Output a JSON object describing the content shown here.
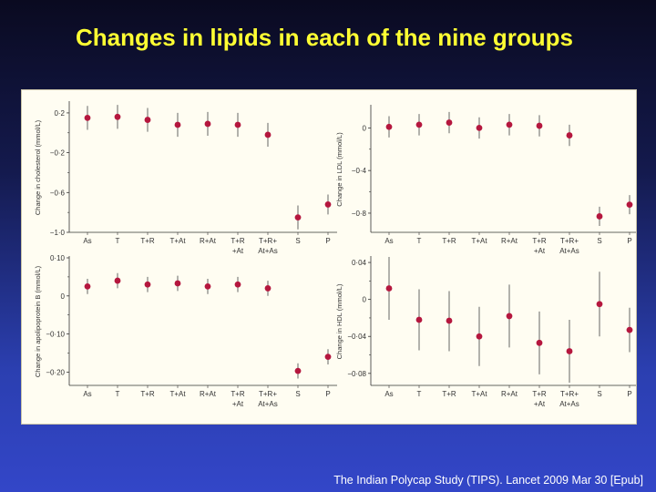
{
  "slide": {
    "title": "Changes in lipids in each of the nine groups",
    "citation": "The Indian Polycap Study (TIPS). Lancet 2009 Mar 30 [Epub]"
  },
  "colors": {
    "point": "#b5173e",
    "errorbar": "#555555",
    "axis": "#333333",
    "title": "#ffff33"
  },
  "chart_data": [
    {
      "type": "scatter",
      "ylabel": "Change in cholesterol (mmol/L)",
      "categories": [
        "As",
        "T",
        "T+R",
        "T+At",
        "R+At",
        "T+R\n+At",
        "T+R+\nAt+As",
        "S",
        "P"
      ],
      "values": [
        0.15,
        0.16,
        0.13,
        0.08,
        0.09,
        0.08,
        -0.02,
        -0.85,
        -0.72
      ],
      "error_low": [
        0.03,
        0.04,
        0.01,
        -0.04,
        -0.03,
        -0.04,
        -0.14,
        -0.97,
        -0.82
      ],
      "error_high": [
        0.27,
        0.28,
        0.25,
        0.2,
        0.21,
        0.2,
        0.1,
        -0.73,
        -0.62
      ],
      "ylim": [
        -1.0,
        0.3
      ],
      "yticks": [
        0.2,
        -0.2,
        -0.6,
        -1.0
      ],
      "ytick_labels": [
        "0·2",
        "−0·2",
        "−0·6",
        "−1·0"
      ]
    },
    {
      "type": "scatter",
      "ylabel": "Change in LDL (mmol/L)",
      "categories": [
        "As",
        "T",
        "T+R",
        "T+At",
        "R+At",
        "T+R\n+At",
        "T+R+\nAt+As",
        "S",
        "P"
      ],
      "values": [
        0.01,
        0.03,
        0.05,
        0.0,
        0.03,
        0.02,
        -0.07,
        -0.83,
        -0.72
      ],
      "error_low": [
        -0.09,
        -0.07,
        -0.05,
        -0.1,
        -0.07,
        -0.08,
        -0.17,
        -0.92,
        -0.81
      ],
      "error_high": [
        0.11,
        0.13,
        0.15,
        0.1,
        0.13,
        0.12,
        0.03,
        -0.74,
        -0.63
      ],
      "ylim": [
        -0.98,
        0.2
      ],
      "yticks": [
        0,
        -0.4,
        -0.8
      ],
      "ytick_labels": [
        "0",
        "−0·4",
        "−0·8"
      ]
    },
    {
      "type": "scatter",
      "ylabel": "Change in apolipoprotein B (mmol/L)",
      "categories": [
        "As",
        "T",
        "T+R",
        "T+At",
        "R+At",
        "T+R\n+At",
        "T+R+\nAt+As",
        "S",
        "P"
      ],
      "values": [
        0.025,
        0.04,
        0.03,
        0.033,
        0.025,
        0.03,
        0.02,
        -0.197,
        -0.16
      ],
      "error_low": [
        0.005,
        0.02,
        0.01,
        0.013,
        0.005,
        0.01,
        -0.0,
        -0.217,
        -0.18
      ],
      "error_high": [
        0.045,
        0.06,
        0.05,
        0.053,
        0.045,
        0.05,
        0.04,
        -0.177,
        -0.14
      ],
      "ylim": [
        -0.235,
        0.1
      ],
      "yticks": [
        0.1,
        0,
        -0.1,
        -0.2
      ],
      "ytick_labels": [
        "0·10",
        "0",
        "−0·10",
        "−0·20"
      ]
    },
    {
      "type": "scatter",
      "ylabel": "Change in HDL (mmol/L)",
      "categories": [
        "As",
        "T",
        "T+R",
        "T+At",
        "R+At",
        "T+R\n+At",
        "T+R+\nAt+As",
        "S",
        "P"
      ],
      "values": [
        0.012,
        -0.022,
        -0.023,
        -0.04,
        -0.018,
        -0.047,
        -0.056,
        -0.005,
        -0.033
      ],
      "error_low": [
        -0.022,
        -0.055,
        -0.056,
        -0.072,
        -0.052,
        -0.081,
        -0.09,
        -0.04,
        -0.057
      ],
      "error_high": [
        0.046,
        0.011,
        0.009,
        -0.008,
        0.016,
        -0.013,
        -0.022,
        0.03,
        -0.009
      ],
      "ylim": [
        -0.093,
        0.045
      ],
      "yticks": [
        0.04,
        0,
        -0.04,
        -0.08
      ],
      "ytick_labels": [
        "0·04",
        "0",
        "−0·04",
        "−0·08"
      ]
    }
  ]
}
